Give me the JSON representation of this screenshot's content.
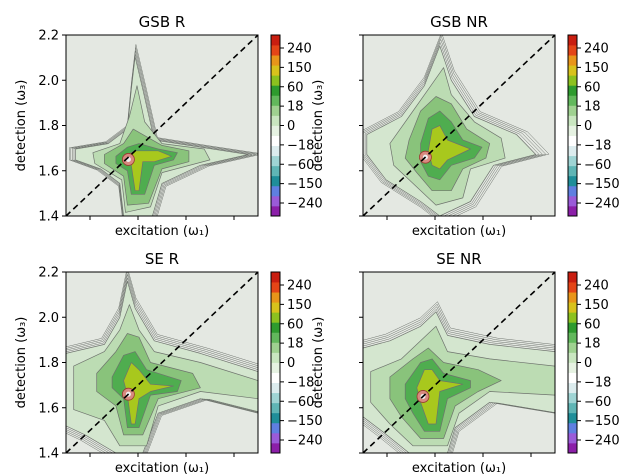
{
  "chart_data": [
    {
      "type": "heatmap",
      "title": "GSB R",
      "xlabel": "excitation (ω₁)",
      "ylabel": "detection (ω₃)",
      "ylim": [
        1.4,
        2.2
      ],
      "y_ticks": [
        "1.4",
        "1.6",
        "1.8",
        "2.0",
        "2.2"
      ],
      "diagonal": true,
      "peak": {
        "x": 1.66,
        "y": 1.65
      },
      "colorbar_ticks": [
        "240",
        "150",
        "60",
        "18",
        "0",
        "−18",
        "−60",
        "−150",
        "−240"
      ]
    },
    {
      "type": "heatmap",
      "title": "GSB NR",
      "xlabel": "excitation (ω₁)",
      "ylabel": "detection (ω₃)",
      "ylim": [
        1.4,
        2.2
      ],
      "y_ticks": [],
      "diagonal": true,
      "peak": {
        "x": 1.66,
        "y": 1.66
      },
      "colorbar_ticks": [
        "240",
        "150",
        "60",
        "18",
        "0",
        "−18",
        "−60",
        "−150",
        "−240"
      ]
    },
    {
      "type": "heatmap",
      "title": "SE R",
      "xlabel": "excitation (ω₁)",
      "ylabel": "detection (ω₃)",
      "ylim": [
        1.4,
        2.2
      ],
      "y_ticks": [
        "1.4",
        "1.6",
        "1.8",
        "2.0",
        "2.2"
      ],
      "diagonal": true,
      "peak": {
        "x": 1.66,
        "y": 1.66
      },
      "colorbar_ticks": [
        "240",
        "150",
        "60",
        "18",
        "0",
        "−18",
        "−60",
        "−150",
        "−240"
      ]
    },
    {
      "type": "heatmap",
      "title": "SE NR",
      "xlabel": "excitation (ω₁)",
      "ylabel": "detection (ω₃)",
      "ylim": [
        1.4,
        2.2
      ],
      "y_ticks": [],
      "diagonal": true,
      "peak": {
        "x": 1.65,
        "y": 1.65
      },
      "colorbar_ticks": [
        "240",
        "150",
        "60",
        "18",
        "0",
        "−18",
        "−60",
        "−150",
        "−240"
      ]
    }
  ],
  "colors": {
    "background": "#e4e8e2",
    "contour_line": "#6e736d",
    "diagonal": "#000000",
    "colormap": [
      "#8b1fa8",
      "#9a5bd8",
      "#5f7fe0",
      "#1f8e99",
      "#5fb5b5",
      "#9fd4d4",
      "#dcecee",
      "#ffffff",
      "#e6f2e2",
      "#c9e6c0",
      "#9fd190",
      "#62b85c",
      "#2e9b2e",
      "#8cc11f",
      "#d8c21c",
      "#e8951a",
      "#e44517",
      "#c91e10"
    ]
  }
}
